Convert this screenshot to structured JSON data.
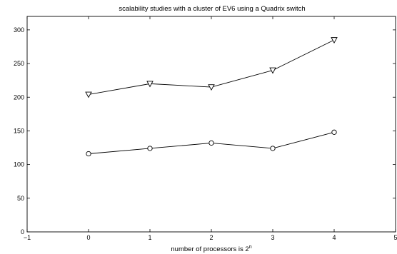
{
  "chart_data": {
    "type": "line",
    "title": "scalability studies with a cluster of EV6 using a Quadrix switch",
    "xlabel": {
      "base": "number of processors is 2",
      "superscript": "n"
    },
    "ylabel": "",
    "xlim": [
      -1,
      5
    ],
    "ylim": [
      0,
      320
    ],
    "xticks": [
      -1,
      0,
      1,
      2,
      3,
      4,
      5
    ],
    "yticks": [
      0,
      50,
      100,
      150,
      200,
      250,
      300
    ],
    "grid": false,
    "legend": "none",
    "x": [
      0,
      1,
      2,
      3,
      4
    ],
    "series": [
      {
        "marker": "triangle-down",
        "values": [
          204,
          220,
          215,
          240,
          285
        ]
      },
      {
        "marker": "circle",
        "values": [
          116,
          124,
          132,
          124,
          148
        ]
      }
    ],
    "colors": {
      "line": "#000000",
      "axes": "#000000",
      "background": "#ffffff"
    }
  }
}
